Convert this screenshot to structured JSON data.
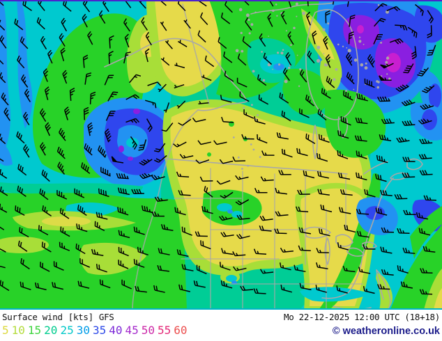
{
  "caption": {
    "product": "Surface wind",
    "units": "[kts]",
    "model": "GFS",
    "datetime": "Mo 22-12-2025 12:00 UTC (18+18)",
    "copyright": "© weatheronline.co.uk"
  },
  "legend": {
    "items": [
      {
        "label": "5",
        "color": "#dcd83c"
      },
      {
        "label": "10",
        "color": "#b4dc3c"
      },
      {
        "label": "15",
        "color": "#3cd43c"
      },
      {
        "label": "20",
        "color": "#00cc8e"
      },
      {
        "label": "25",
        "color": "#00c8c8"
      },
      {
        "label": "30",
        "color": "#009ce8"
      },
      {
        "label": "35",
        "color": "#2c48e8"
      },
      {
        "label": "40",
        "color": "#7c28d8"
      },
      {
        "label": "45",
        "color": "#a428cc"
      },
      {
        "label": "50",
        "color": "#cc28a8"
      },
      {
        "label": "55",
        "color": "#e42878"
      },
      {
        "label": "60",
        "color": "#ec5050"
      }
    ]
  },
  "map_colors": {
    "kts5_yellow": "#e6da4a",
    "kts10_yellowgreen": "#a8de38",
    "kts15_green": "#28d228",
    "kts20_teal": "#00cd96",
    "kts25_cyan": "#00c9cf",
    "kts30_azure": "#2292f2",
    "kts35_blue": "#2f46ee",
    "kts40_violet": "#8a1fe0",
    "kts50_magenta": "#c81fd0",
    "coastline_gray": "#a8a8a8",
    "barb_black": "#000000"
  }
}
